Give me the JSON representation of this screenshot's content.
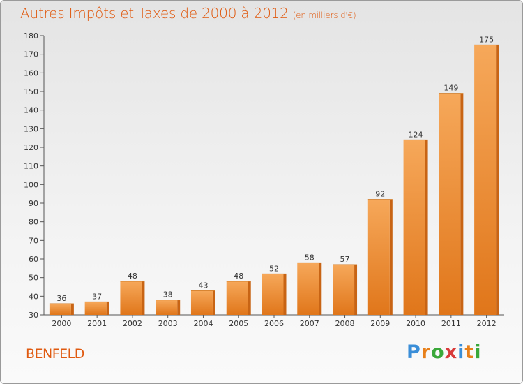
{
  "header": {
    "title": "Autres Impôts et Taxes de 2000 à 2012",
    "subtitle": "(en milliers d'€)"
  },
  "footer": {
    "town": "BENFELD",
    "logo": [
      "P",
      "r",
      "o",
      "x",
      "i",
      "t",
      "i"
    ],
    "logo_colors": [
      "#3a8ed8",
      "#e8801a",
      "#3aa83a",
      "#d83a3a",
      "#3a8ed8",
      "#e8801a",
      "#3aa83a"
    ]
  },
  "colors": {
    "bar_light": "#f6a85a",
    "bar_dark": "#e0761a",
    "bar_right": "#c86414",
    "accent": "#e05a10"
  },
  "chart_data": {
    "type": "bar",
    "title": "Autres Impôts et Taxes de 2000 à 2012",
    "subtitle": "(en milliers d'€)",
    "categories": [
      "2000",
      "2001",
      "2002",
      "2003",
      "2004",
      "2005",
      "2006",
      "2007",
      "2008",
      "2009",
      "2010",
      "2011",
      "2012"
    ],
    "values": [
      36,
      37,
      48,
      38,
      43,
      48,
      52,
      58,
      57,
      92,
      124,
      149,
      175
    ],
    "ylim": [
      30,
      180
    ],
    "yticks": [
      30,
      40,
      50,
      60,
      70,
      80,
      90,
      100,
      110,
      120,
      130,
      140,
      150,
      160,
      170,
      180
    ],
    "grid": false,
    "xlabel": "",
    "ylabel": ""
  }
}
